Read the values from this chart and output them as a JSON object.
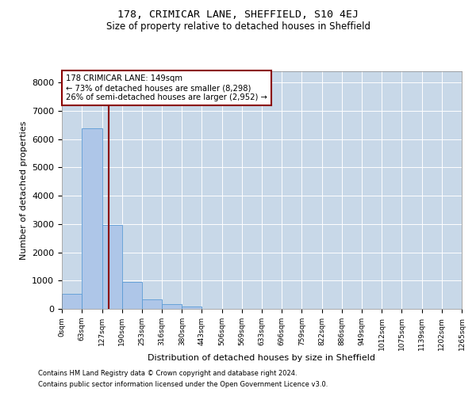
{
  "title": "178, CRIMICAR LANE, SHEFFIELD, S10 4EJ",
  "subtitle": "Size of property relative to detached houses in Sheffield",
  "xlabel": "Distribution of detached houses by size in Sheffield",
  "ylabel": "Number of detached properties",
  "footer_line1": "Contains HM Land Registry data © Crown copyright and database right 2024.",
  "footer_line2": "Contains public sector information licensed under the Open Government Licence v3.0.",
  "annotation_line1": "178 CRIMICAR LANE: 149sqm",
  "annotation_line2": "← 73% of detached houses are smaller (8,298)",
  "annotation_line3": "26% of semi-detached houses are larger (2,952) →",
  "bar_edges": [
    0,
    63,
    127,
    190,
    253,
    316,
    380,
    443,
    506,
    569,
    633,
    696,
    759,
    822,
    886,
    949,
    1012,
    1075,
    1139,
    1202,
    1265
  ],
  "bar_heights": [
    530,
    6380,
    2960,
    950,
    340,
    160,
    90,
    0,
    0,
    0,
    0,
    0,
    0,
    0,
    0,
    0,
    0,
    0,
    0,
    0
  ],
  "bar_color": "#aec6e8",
  "bar_edge_color": "#5b9bd5",
  "vline_x": 149,
  "vline_color": "#8b0000",
  "annotation_box_color": "#8b0000",
  "background_color": "#ffffff",
  "grid_color": "#c8d8e8",
  "ylim": [
    0,
    8400
  ],
  "yticks": [
    0,
    1000,
    2000,
    3000,
    4000,
    5000,
    6000,
    7000,
    8000
  ]
}
